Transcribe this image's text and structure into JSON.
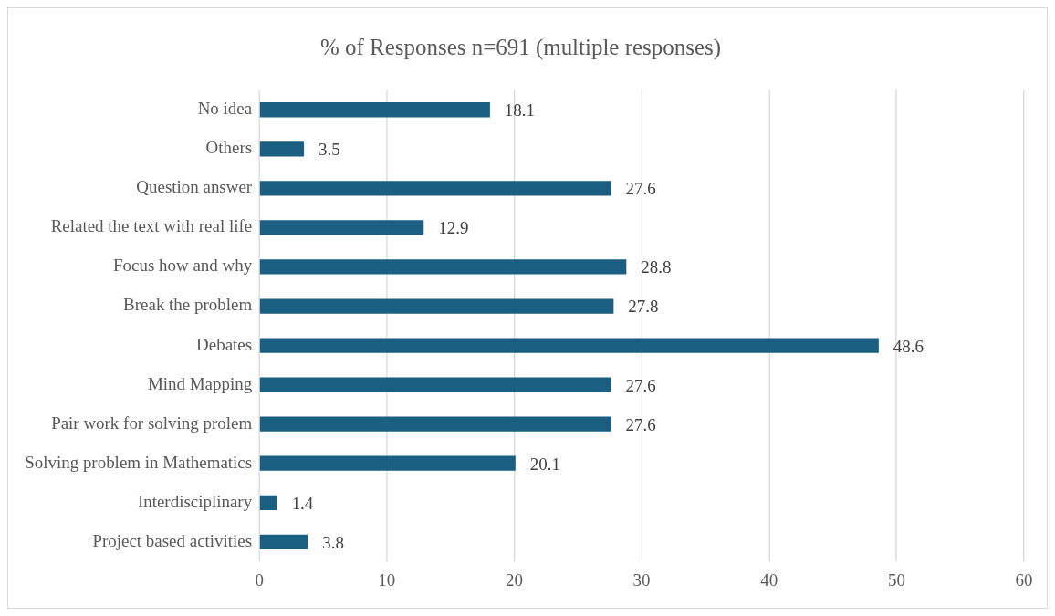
{
  "chart_data": {
    "type": "bar",
    "orientation": "horizontal",
    "title": "% of Responses n=691 (multiple responses)",
    "categories": [
      "No idea",
      "Others",
      "Question answer",
      "Related the text with real life",
      "Focus how and why",
      "Break the problem",
      "Debates",
      "Mind Mapping",
      "Pair work for solving prolem",
      "Solving problem in Mathematics",
      "Interdisciplinary",
      "Project based activities"
    ],
    "values": [
      18.1,
      3.5,
      27.6,
      12.9,
      28.8,
      27.8,
      48.6,
      27.6,
      27.6,
      20.1,
      1.4,
      3.8
    ],
    "color": "#1a5f82",
    "xlim": [
      0,
      60
    ],
    "xticks": [
      0,
      10,
      20,
      30,
      40,
      50,
      60
    ],
    "grid": "x",
    "data_labels": true,
    "legend": false
  }
}
